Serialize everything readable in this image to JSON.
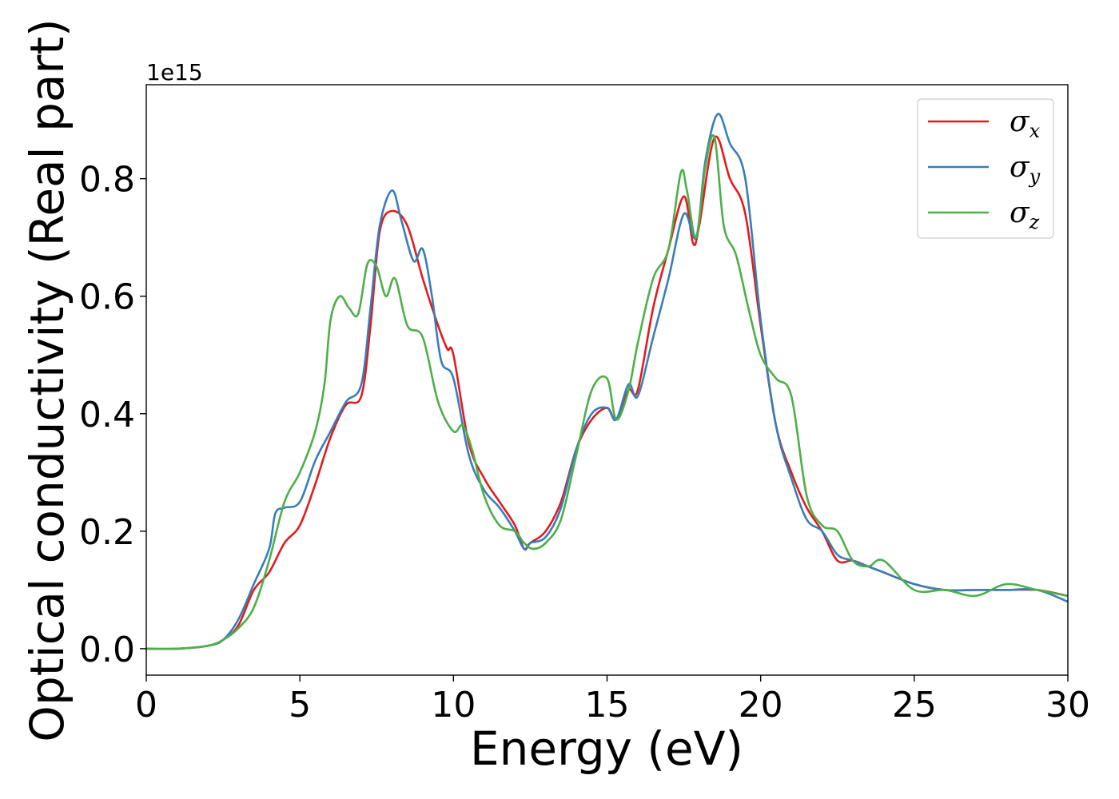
{
  "chart_data": {
    "type": "line",
    "xlabel": "Energy (eV)",
    "ylabel": "Optical conductivity (Real part)",
    "y_offset_label": "1e15",
    "xlim": [
      0,
      30
    ],
    "ylim": [
      -0.045,
      0.96
    ],
    "x_ticks": [
      0,
      5,
      10,
      15,
      20,
      25,
      30
    ],
    "x_tick_labels": [
      "0",
      "5",
      "10",
      "15",
      "20",
      "25",
      "30"
    ],
    "y_ticks": [
      0.0,
      0.2,
      0.4,
      0.6,
      0.8
    ],
    "y_tick_labels": [
      "0.0",
      "0.2",
      "0.4",
      "0.6",
      "0.8"
    ],
    "grid": false,
    "legend_position": "top-right",
    "series": [
      {
        "name": "σx",
        "symbol": "σ",
        "subscript": "x",
        "color": "#e41a1c",
        "x": [
          0,
          1,
          2,
          2.5,
          3,
          3.5,
          4,
          4.5,
          5,
          5.5,
          6,
          6.5,
          7,
          7.3,
          7.6,
          8,
          8.5,
          9,
          9.5,
          9.8,
          10,
          10.5,
          11,
          11.5,
          12,
          12.3,
          12.5,
          13,
          13.5,
          14,
          14.5,
          15,
          15.3,
          15.7,
          16,
          16.5,
          17,
          17.5,
          17.8,
          18,
          18.5,
          19,
          19.5,
          20,
          20.5,
          21,
          21.5,
          22,
          22.5,
          23,
          23.5,
          24,
          25,
          26,
          27,
          28,
          29,
          30
        ],
        "y": [
          0.0,
          0.0,
          0.005,
          0.015,
          0.04,
          0.1,
          0.13,
          0.18,
          0.21,
          0.28,
          0.36,
          0.415,
          0.43,
          0.55,
          0.71,
          0.745,
          0.72,
          0.63,
          0.55,
          0.51,
          0.5,
          0.35,
          0.29,
          0.25,
          0.21,
          0.17,
          0.18,
          0.2,
          0.25,
          0.34,
          0.39,
          0.41,
          0.39,
          0.44,
          0.44,
          0.58,
          0.68,
          0.77,
          0.69,
          0.72,
          0.87,
          0.8,
          0.74,
          0.55,
          0.38,
          0.3,
          0.24,
          0.2,
          0.15,
          0.15,
          0.14,
          0.13,
          0.11,
          0.1,
          0.1,
          0.1,
          0.1,
          0.09
        ]
      },
      {
        "name": "σy",
        "symbol": "σ",
        "subscript": "y",
        "color": "#377eb8",
        "x": [
          0,
          1,
          2,
          2.5,
          3,
          3.5,
          4,
          4.2,
          4.5,
          5,
          5.5,
          6,
          6.5,
          7,
          7.3,
          7.6,
          8,
          8.3,
          8.7,
          9,
          9.3,
          9.6,
          10,
          10.5,
          11,
          11.5,
          12,
          12.3,
          12.5,
          13,
          13.5,
          14,
          14.5,
          15,
          15.3,
          15.7,
          16,
          16.5,
          17,
          17.5,
          17.9,
          18.2,
          18.6,
          19,
          19.5,
          20,
          20.5,
          21,
          21.5,
          22,
          22.5,
          23,
          23.5,
          24,
          25,
          26,
          27,
          28,
          29,
          30
        ],
        "y": [
          0.0,
          0.0,
          0.005,
          0.015,
          0.05,
          0.11,
          0.17,
          0.23,
          0.24,
          0.25,
          0.32,
          0.37,
          0.42,
          0.45,
          0.58,
          0.72,
          0.78,
          0.73,
          0.66,
          0.68,
          0.6,
          0.49,
          0.46,
          0.33,
          0.27,
          0.24,
          0.2,
          0.17,
          0.18,
          0.19,
          0.24,
          0.34,
          0.4,
          0.41,
          0.39,
          0.45,
          0.43,
          0.53,
          0.63,
          0.74,
          0.7,
          0.83,
          0.91,
          0.86,
          0.8,
          0.56,
          0.38,
          0.29,
          0.22,
          0.2,
          0.16,
          0.15,
          0.14,
          0.13,
          0.11,
          0.1,
          0.1,
          0.1,
          0.1,
          0.08
        ]
      },
      {
        "name": "σz",
        "symbol": "σ",
        "subscript": "z",
        "color": "#4daf4a",
        "x": [
          0,
          1,
          2,
          2.5,
          3,
          3.5,
          4,
          4.5,
          5,
          5.5,
          5.8,
          6,
          6.3,
          6.6,
          6.9,
          7.2,
          7.5,
          7.8,
          8.1,
          8.5,
          9,
          9.5,
          10,
          10.3,
          10.6,
          11,
          11.5,
          12,
          12.3,
          12.6,
          13,
          13.5,
          14,
          14.5,
          15,
          15.3,
          15.7,
          16,
          16.5,
          17,
          17.4,
          17.6,
          17.9,
          18.2,
          18.5,
          18.8,
          19.2,
          19.6,
          20,
          20.5,
          21,
          21.5,
          22,
          22.5,
          23,
          23.5,
          24,
          25,
          26,
          27,
          28,
          29,
          30
        ],
        "y": [
          0.0,
          0.0,
          0.005,
          0.015,
          0.035,
          0.07,
          0.15,
          0.25,
          0.3,
          0.37,
          0.45,
          0.56,
          0.6,
          0.58,
          0.57,
          0.655,
          0.65,
          0.6,
          0.63,
          0.55,
          0.53,
          0.42,
          0.37,
          0.38,
          0.34,
          0.26,
          0.21,
          0.2,
          0.18,
          0.17,
          0.18,
          0.22,
          0.33,
          0.44,
          0.46,
          0.39,
          0.44,
          0.52,
          0.63,
          0.68,
          0.81,
          0.78,
          0.7,
          0.82,
          0.87,
          0.72,
          0.67,
          0.58,
          0.5,
          0.46,
          0.43,
          0.26,
          0.21,
          0.2,
          0.15,
          0.14,
          0.15,
          0.1,
          0.1,
          0.09,
          0.11,
          0.1,
          0.09
        ]
      }
    ]
  }
}
